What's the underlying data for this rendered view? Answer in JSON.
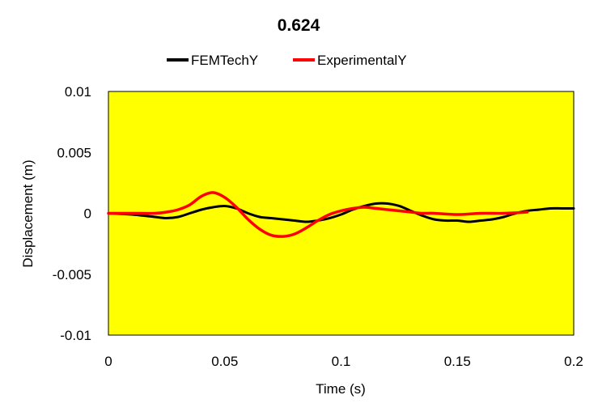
{
  "chart_data": {
    "type": "line",
    "title": "0.624",
    "xlabel": "Time (s)",
    "ylabel": "Displacement (m)",
    "xlim": [
      0,
      0.2
    ],
    "ylim": [
      -0.01,
      0.01
    ],
    "x_ticks": [
      0,
      0.05,
      0.1,
      0.15,
      0.2
    ],
    "x_tick_labels": [
      "0",
      "0.05",
      "0.1",
      "0.15",
      "0.2"
    ],
    "y_ticks": [
      0.01,
      0.005,
      0,
      -0.005,
      -0.01
    ],
    "y_tick_labels": [
      "0.01",
      "0.005",
      "0",
      "-0.005",
      "-0.01"
    ],
    "grid": false,
    "legend_position": "top",
    "plot_background": "#ffff00",
    "series": [
      {
        "name": "FEMTechY",
        "color": "#000000",
        "x": [
          0,
          0.01,
          0.02,
          0.025,
          0.03,
          0.035,
          0.04,
          0.045,
          0.05,
          0.055,
          0.06,
          0.065,
          0.07,
          0.075,
          0.08,
          0.085,
          0.09,
          0.095,
          0.1,
          0.105,
          0.11,
          0.115,
          0.12,
          0.125,
          0.13,
          0.135,
          0.14,
          0.145,
          0.15,
          0.155,
          0.16,
          0.165,
          0.17,
          0.175,
          0.18,
          0.185,
          0.19,
          0.195,
          0.2
        ],
        "y": [
          0,
          -0.0001,
          -0.0003,
          -0.0004,
          -0.0003,
          0.0,
          0.0003,
          0.0005,
          0.0006,
          0.0004,
          0.0,
          -0.0003,
          -0.0004,
          -0.0005,
          -0.0006,
          -0.0007,
          -0.0006,
          -0.0004,
          -0.0001,
          0.0003,
          0.0006,
          0.0008,
          0.0008,
          0.0006,
          0.0002,
          -0.0002,
          -0.0005,
          -0.0006,
          -0.0006,
          -0.0007,
          -0.0006,
          -0.0005,
          -0.0003,
          0.0,
          0.0002,
          0.0003,
          0.0004,
          0.0004,
          0.0004
        ]
      },
      {
        "name": "ExperimentalY",
        "color": "#ff0000",
        "x": [
          0,
          0.01,
          0.02,
          0.025,
          0.03,
          0.035,
          0.04,
          0.045,
          0.05,
          0.055,
          0.06,
          0.065,
          0.07,
          0.075,
          0.08,
          0.085,
          0.09,
          0.095,
          0.1,
          0.105,
          0.11,
          0.115,
          0.12,
          0.125,
          0.13,
          0.135,
          0.14,
          0.15,
          0.16,
          0.17,
          0.18
        ],
        "y": [
          0,
          0.0,
          0.0,
          0.0001,
          0.0003,
          0.0007,
          0.0014,
          0.0017,
          0.0013,
          0.0005,
          -0.0005,
          -0.0013,
          -0.0018,
          -0.0019,
          -0.0017,
          -0.0012,
          -0.0006,
          -0.0001,
          0.0002,
          0.0004,
          0.0005,
          0.0004,
          0.0003,
          0.0002,
          0.0001,
          0.0,
          0.0,
          -0.0001,
          0.0,
          0.0,
          0.0001
        ]
      }
    ]
  }
}
